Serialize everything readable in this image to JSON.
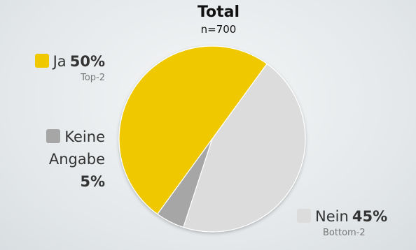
{
  "chart_data": {
    "type": "pie",
    "title": "Total",
    "subtitle": "n=700",
    "slices": [
      {
        "label": "Ja",
        "value": 50,
        "value_label": "50%",
        "note": "Top-2",
        "color": "#f0c800"
      },
      {
        "label": "Keine Angabe",
        "label_line1": "Keine",
        "label_line2": "Angabe",
        "value": 5,
        "value_label": "5%",
        "note": "",
        "color": "#a6a6a6"
      },
      {
        "label": "Nein",
        "value": 45,
        "value_label": "45%",
        "note": "Bottom-2",
        "color": "#dcdcdc"
      }
    ]
  }
}
